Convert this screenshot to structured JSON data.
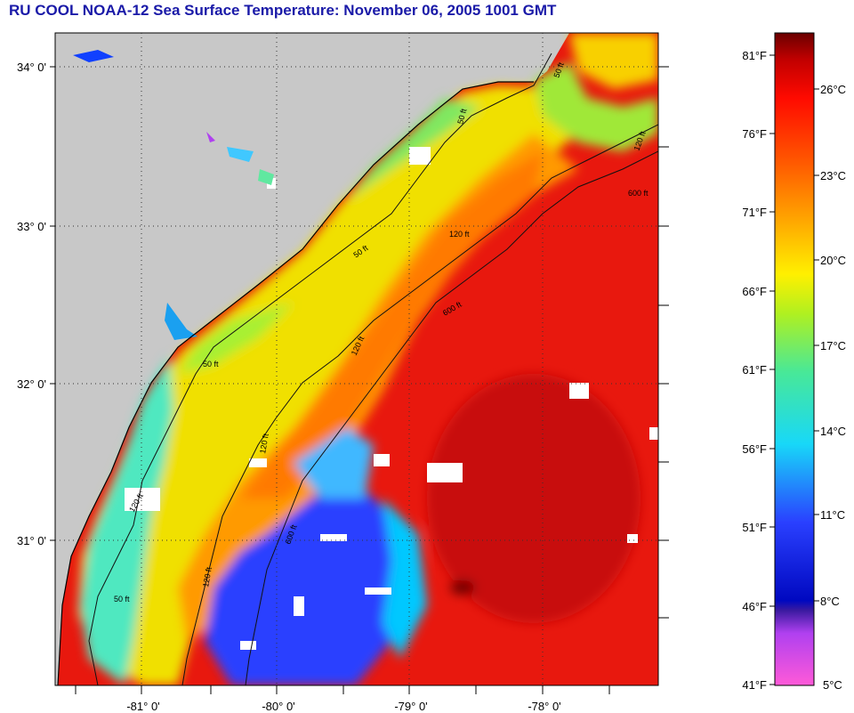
{
  "title": "RU COOL  NOAA-12  Sea Surface Temperature:  November 06, 2005 1001 GMT",
  "lat_labels": [
    "34° 0'",
    "33° 0'",
    "32° 0'",
    "31° 0'"
  ],
  "lon_labels": [
    "-81° 0'",
    "-80° 0'",
    "-79° 0'",
    "-78° 0'"
  ],
  "contour_labels": [
    "50 ft",
    "50 ft",
    "50 ft",
    "50 ft",
    "50 ft",
    "120 ft",
    "120 ft",
    "120 ft",
    "120 ft",
    "600 ft",
    "600 ft",
    "600 ft",
    "120 ft",
    "120 ft"
  ],
  "colorbar": {
    "f_labels": [
      "81°F",
      "76°F",
      "71°F",
      "66°F",
      "61°F",
      "56°F",
      "51°F",
      "46°F",
      "41°F"
    ],
    "c_labels": [
      "26°C",
      "23°C",
      "20°C",
      "17°C",
      "14°C",
      "11°C",
      "8°C",
      "5°C"
    ]
  },
  "colors": {
    "land": "#c8c8c8",
    "title": "#1a1aa8",
    "cloud": "#ffffff",
    "warm": "#ee1a10",
    "cold": "#2a3aff"
  }
}
